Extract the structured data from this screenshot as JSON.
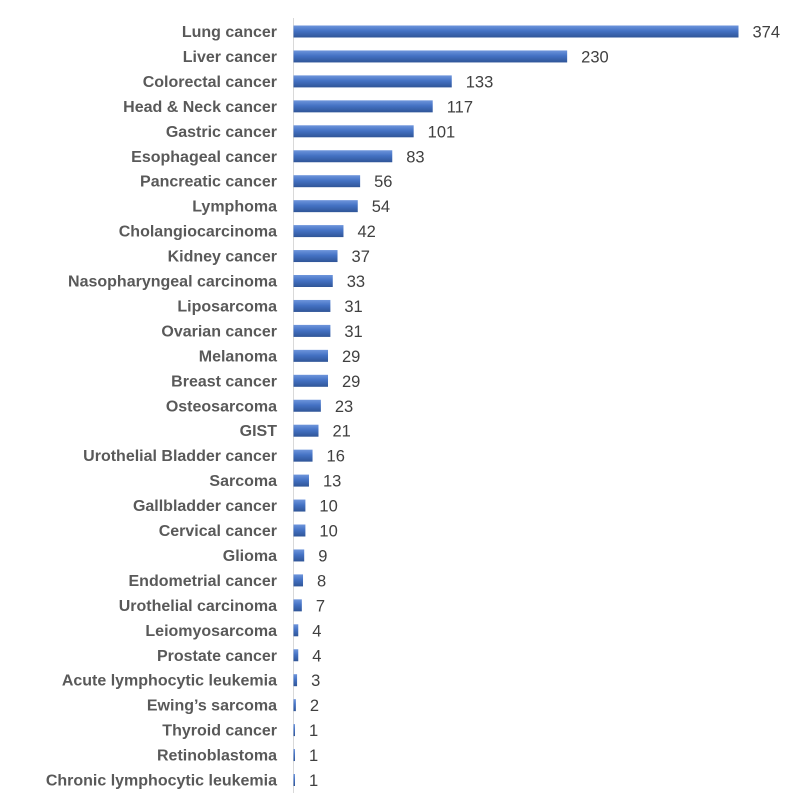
{
  "chart_data": {
    "type": "bar",
    "orientation": "horizontal",
    "categories": [
      "Lung cancer",
      "Liver cancer",
      "Colorectal cancer",
      "Head & Neck cancer",
      "Gastric cancer",
      "Esophageal cancer",
      "Pancreatic cancer",
      "Lymphoma",
      "Cholangiocarcinoma",
      "Kidney cancer",
      "Nasopharyngeal carcinoma",
      "Liposarcoma",
      "Ovarian cancer",
      "Melanoma",
      "Breast cancer",
      "Osteosarcoma",
      "GIST",
      "Urothelial Bladder cancer",
      "Sarcoma",
      "Gallbladder cancer",
      "Cervical cancer",
      "Glioma",
      "Endometrial cancer",
      "Urothelial carcinoma",
      "Leiomyosarcoma",
      "Prostate cancer",
      "Acute lymphocytic leukemia",
      "Ewing’s sarcoma",
      "Thyroid cancer",
      "Retinoblastoma",
      "Chronic lymphocytic leukemia"
    ],
    "values": [
      374,
      230,
      133,
      117,
      101,
      83,
      56,
      54,
      42,
      37,
      33,
      31,
      31,
      29,
      29,
      23,
      21,
      16,
      13,
      10,
      10,
      9,
      8,
      7,
      4,
      4,
      3,
      2,
      1,
      1,
      1
    ],
    "xlim": [
      0,
      374
    ],
    "title": "",
    "xlabel": "",
    "ylabel": "",
    "grid": false,
    "data_labels": true,
    "bar_color": "#4472C4",
    "bar_color_light": "#6E95DC",
    "bar_color_dark": "#2F5597",
    "axis_color": "#D9D9D9"
  }
}
